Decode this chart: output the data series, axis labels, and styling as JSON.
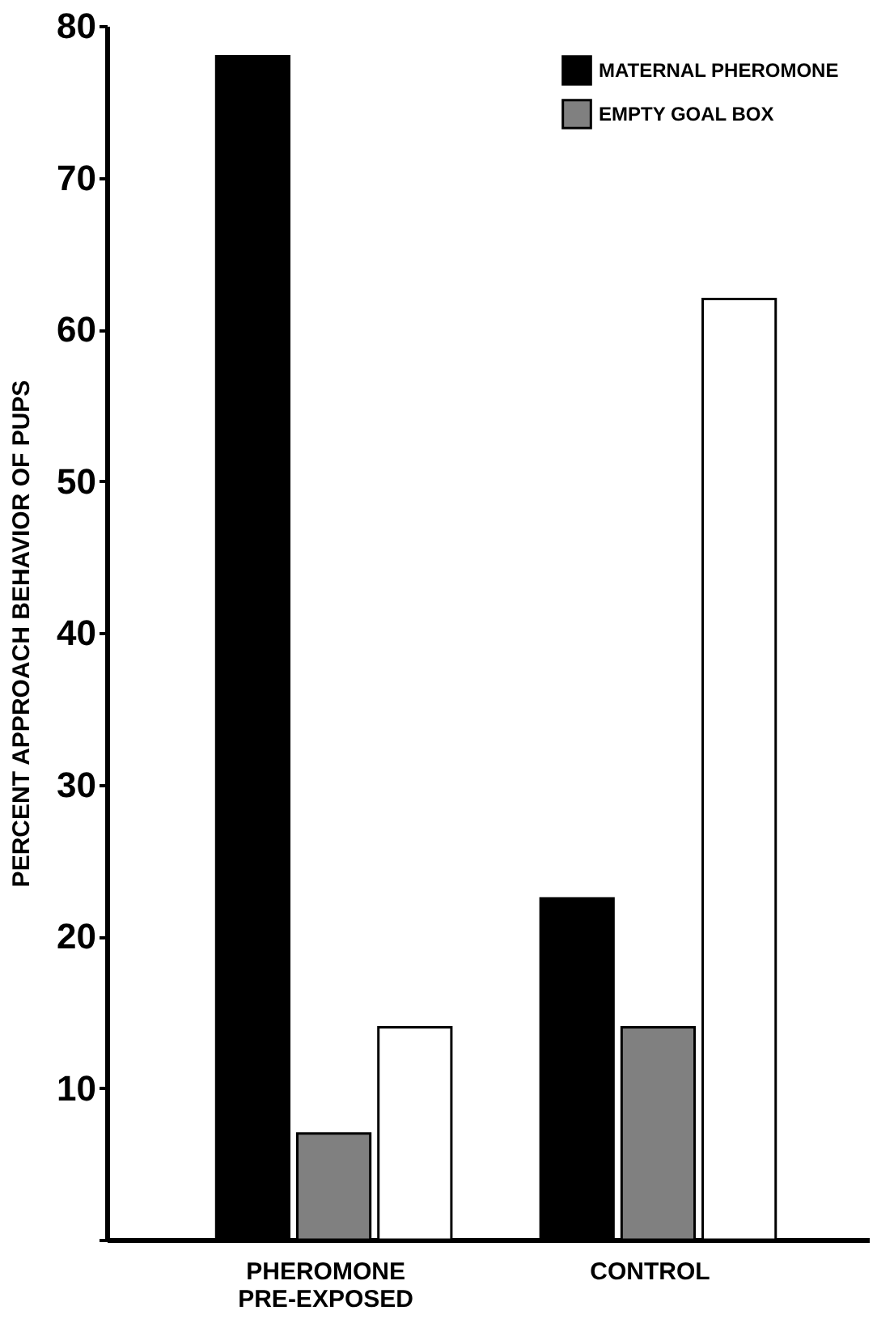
{
  "chart_data": {
    "type": "bar",
    "ylabel": "PERCENT APPROACH BEHAVIOR OF PUPS",
    "categories": [
      "PHEROMONE PRE-EXPOSED",
      "CONTROL"
    ],
    "series": [
      {
        "name": "MATERNAL PHEROMONE",
        "color": "#000000",
        "values": [
          78,
          22.5
        ]
      },
      {
        "name": "EMPTY GOAL BOX",
        "color": "#808080",
        "values": [
          7,
          14
        ]
      },
      {
        "color": "#ffffff",
        "values": [
          14,
          62
        ]
      }
    ],
    "ylim": [
      0,
      80
    ],
    "yticks": [
      {
        "value": 0,
        "label": null
      },
      10,
      20,
      30,
      40,
      50,
      60,
      70,
      80
    ],
    "grid": false,
    "legend": "top right"
  }
}
